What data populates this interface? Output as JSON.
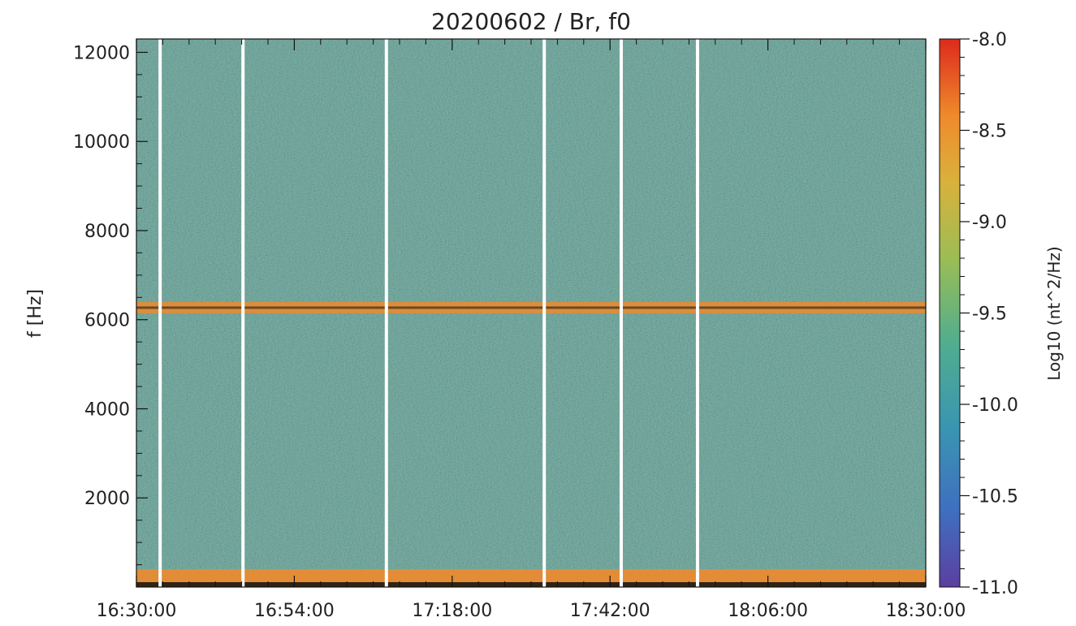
{
  "chart_data": {
    "type": "heatmap",
    "title": "20200602 / Br, f0",
    "ylabel": "f [Hz]",
    "xlabel": "",
    "x_ticks": [
      "16:30:00",
      "16:54:00",
      "17:18:00",
      "17:42:00",
      "18:06:00",
      "18:30:00"
    ],
    "x_range_min": [
      0,
      120
    ],
    "y_ticks": [
      2000,
      4000,
      6000,
      8000,
      10000,
      12000
    ],
    "ylim": [
      0,
      12300
    ],
    "colorbar": {
      "label": "Log10 (nt^2/Hz)",
      "range": [
        -11.0,
        -8.0
      ],
      "ticks": [
        "-8.0",
        "-8.5",
        "-9.0",
        "-9.5",
        "-10.0",
        "-10.5",
        "-11.0"
      ],
      "colormap": [
        "#5b3fa0",
        "#3f6fc0",
        "#3a97b0",
        "#52ae8c",
        "#9cbd55",
        "#d9b13c",
        "#ef8a2c",
        "#dd2a1c"
      ]
    },
    "data_gaps_min": [
      3.6,
      16.2,
      38.0,
      62.0,
      73.7,
      85.3
    ],
    "features": [
      {
        "label": "narrowband line",
        "freq_hz": 6270,
        "level": -8.4
      },
      {
        "label": "low-frequency enhancement",
        "freq_hz_range": [
          0,
          400
        ],
        "level": -8.3
      },
      {
        "label": "background noise",
        "level": -9.8
      }
    ]
  }
}
